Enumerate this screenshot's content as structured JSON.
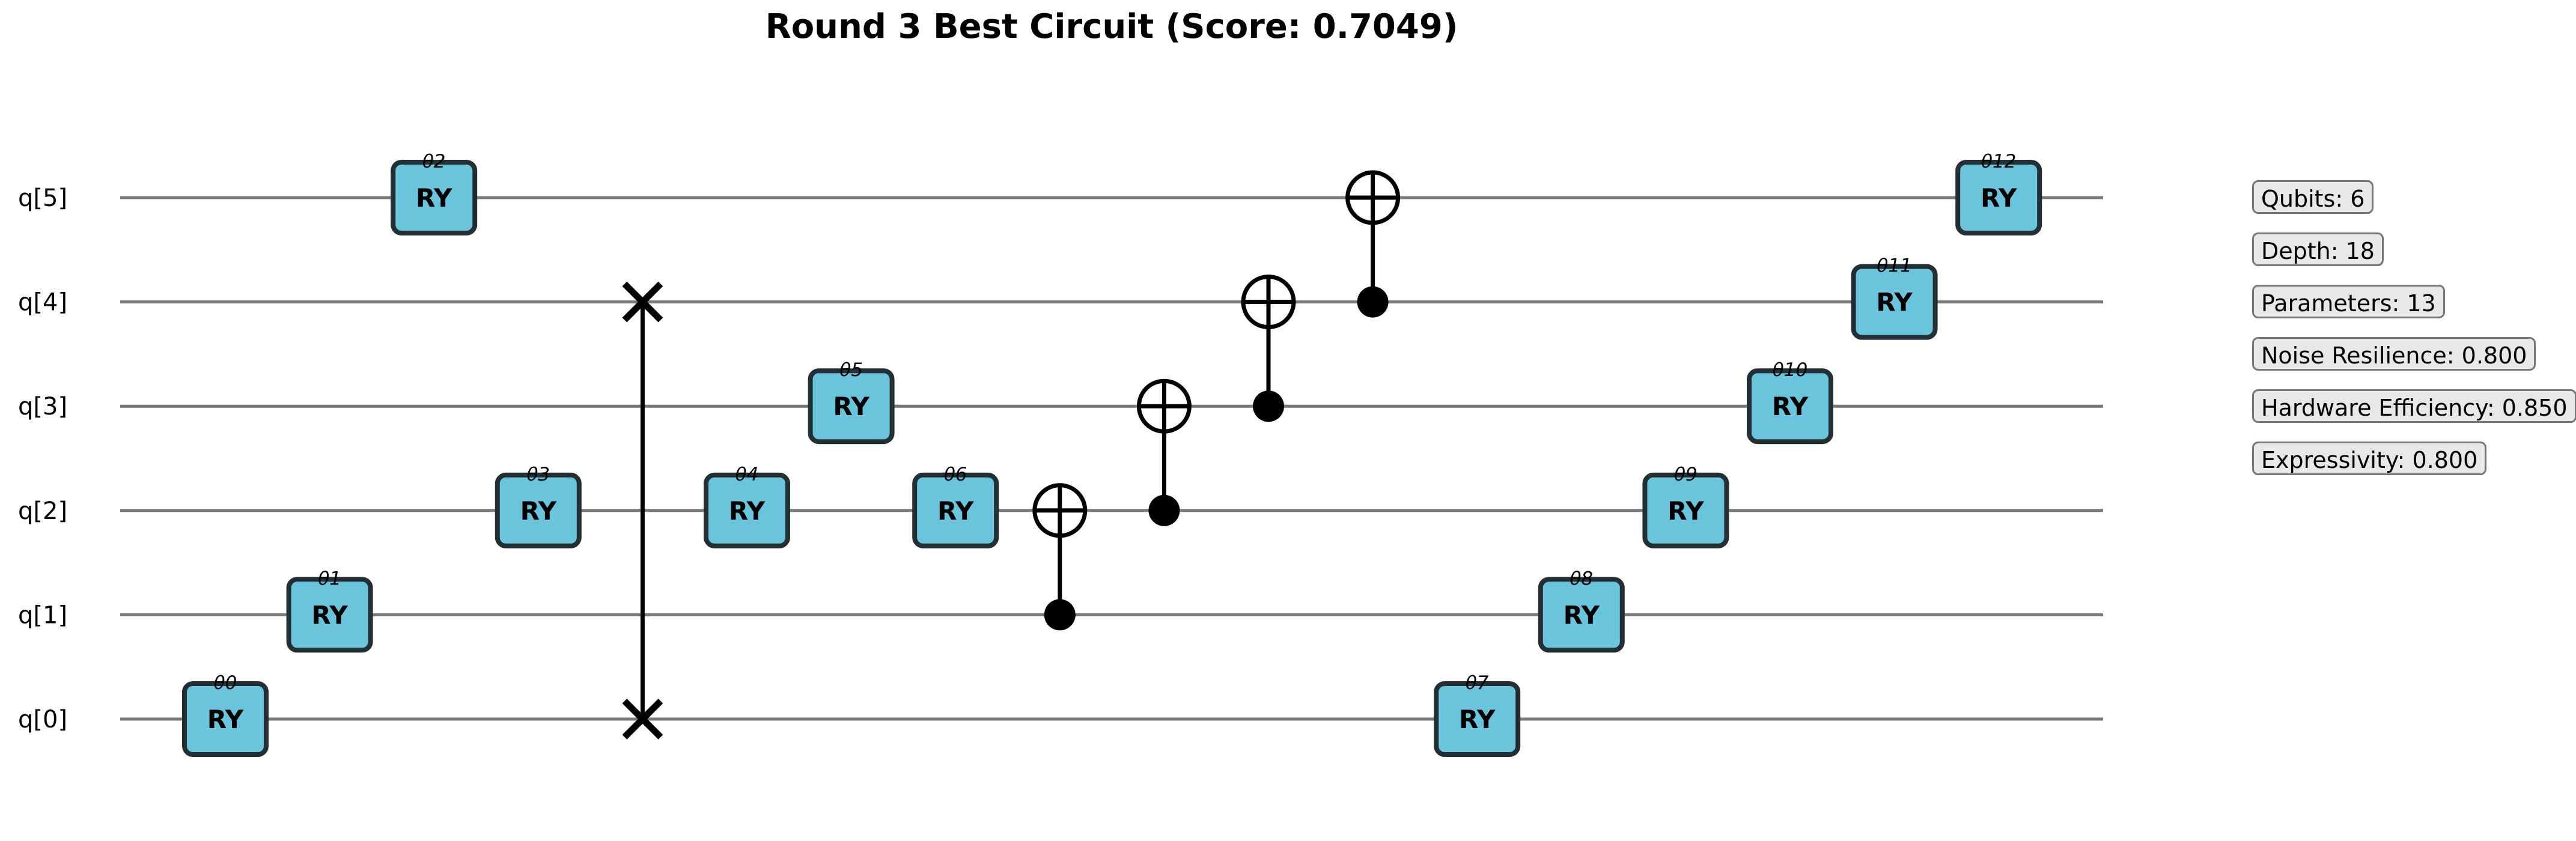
{
  "title": "Round 3 Best Circuit (Score: 0.7049)",
  "qubits": [
    "q[0]",
    "q[1]",
    "q[2]",
    "q[3]",
    "q[4]",
    "q[5]"
  ],
  "colors": {
    "gate_fill": "#6ac4dc",
    "gate_stroke": "#233033",
    "wire": "#7a7a7a",
    "control": "#000000"
  },
  "gates": [
    {
      "name": "RY",
      "param": "θ0",
      "qubit": 0,
      "step": 1
    },
    {
      "name": "RY",
      "param": "θ1",
      "qubit": 1,
      "step": 2
    },
    {
      "name": "RY",
      "param": "θ2",
      "qubit": 5,
      "step": 3
    },
    {
      "name": "RY",
      "param": "θ3",
      "qubit": 2,
      "step": 4
    },
    {
      "name": "RY",
      "param": "θ4",
      "qubit": 2,
      "step": 6
    },
    {
      "name": "RY",
      "param": "θ5",
      "qubit": 3,
      "step": 7
    },
    {
      "name": "RY",
      "param": "θ6",
      "qubit": 2,
      "step": 8
    },
    {
      "name": "RY",
      "param": "θ7",
      "qubit": 0,
      "step": 13
    },
    {
      "name": "RY",
      "param": "θ8",
      "qubit": 1,
      "step": 14
    },
    {
      "name": "RY",
      "param": "θ9",
      "qubit": 2,
      "step": 15
    },
    {
      "name": "RY",
      "param": "θ10",
      "qubit": 3,
      "step": 16
    },
    {
      "name": "RY",
      "param": "θ11",
      "qubit": 4,
      "step": 17
    },
    {
      "name": "RY",
      "param": "θ12",
      "qubit": 5,
      "step": 18
    }
  ],
  "swaps": [
    {
      "qubits": [
        0,
        4
      ],
      "step": 5
    }
  ],
  "cnots": [
    {
      "control": 1,
      "target": 2,
      "step": 9
    },
    {
      "control": 2,
      "target": 3,
      "step": 10
    },
    {
      "control": 3,
      "target": 4,
      "step": 11
    },
    {
      "control": 4,
      "target": 5,
      "step": 12
    }
  ],
  "stats": [
    "Qubits: 6",
    "Depth: 18",
    "Parameters: 13",
    "Noise Resilience: 0.800",
    "Hardware Efficiency: 0.850",
    "Expressivity: 0.800"
  ]
}
